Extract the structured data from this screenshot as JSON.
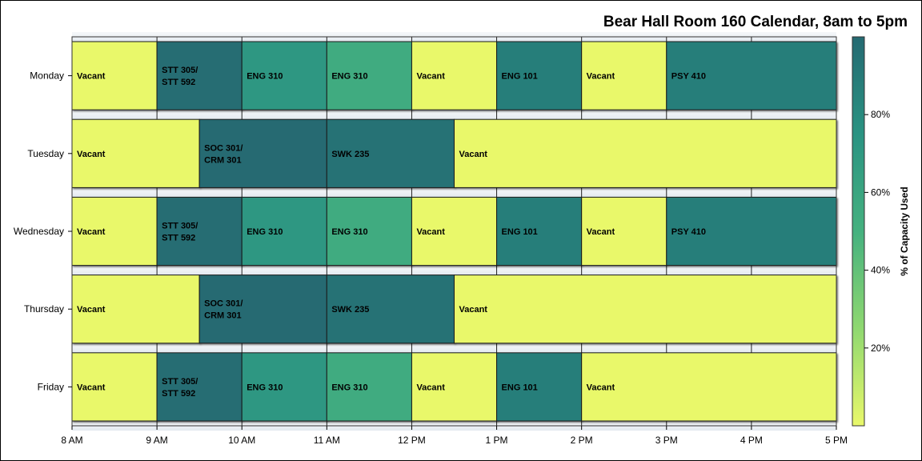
{
  "chart_data": {
    "type": "bar",
    "subtype": "horizontal-timeline",
    "title": "Bear Hall Room 160 Calendar, 8am to 5pm",
    "x_axis": {
      "ticks": [
        "8 AM",
        "9 AM",
        "10 AM",
        "11 AM",
        "12 PM",
        "1 PM",
        "2 PM",
        "3 PM",
        "4 PM",
        "5 PM"
      ],
      "range_hours": [
        8,
        17
      ],
      "grid": true
    },
    "days": [
      "Monday",
      "Tuesday",
      "Wednesday",
      "Thursday",
      "Friday"
    ],
    "colorbar": {
      "label": "% of Capacity Used",
      "ticks": [
        "20%",
        "40%",
        "60%",
        "80%"
      ],
      "tick_values": [
        20,
        40,
        60,
        80
      ],
      "range": [
        0,
        100
      ],
      "colors": [
        "#e9f86b",
        "#8fd870",
        "#45b17f",
        "#2a9382",
        "#256a72"
      ]
    },
    "bars": [
      {
        "day": "Monday",
        "start": 8,
        "end": 9,
        "label": [
          "Vacant"
        ],
        "pct": 0
      },
      {
        "day": "Monday",
        "start": 9,
        "end": 10,
        "label": [
          "STT 305/",
          "STT 592"
        ],
        "pct": 98
      },
      {
        "day": "Monday",
        "start": 10,
        "end": 11,
        "label": [
          "ENG 310"
        ],
        "pct": 72
      },
      {
        "day": "Monday",
        "start": 11,
        "end": 12,
        "label": [
          "ENG 310"
        ],
        "pct": 55
      },
      {
        "day": "Monday",
        "start": 12,
        "end": 13,
        "label": [
          "Vacant"
        ],
        "pct": 0
      },
      {
        "day": "Monday",
        "start": 13,
        "end": 14,
        "label": [
          "ENG 101"
        ],
        "pct": 88
      },
      {
        "day": "Monday",
        "start": 14,
        "end": 15,
        "label": [
          "Vacant"
        ],
        "pct": 0
      },
      {
        "day": "Monday",
        "start": 15,
        "end": 17,
        "label": [
          "PSY 410"
        ],
        "pct": 88
      },
      {
        "day": "Tuesday",
        "start": 8,
        "end": 9.5,
        "label": [
          "Vacant"
        ],
        "pct": 0
      },
      {
        "day": "Tuesday",
        "start": 9.5,
        "end": 11,
        "label": [
          "SOC 301/",
          "CRM 301"
        ],
        "pct": 100
      },
      {
        "day": "Tuesday",
        "start": 11,
        "end": 12.5,
        "label": [
          "SWK 235"
        ],
        "pct": 95
      },
      {
        "day": "Tuesday",
        "start": 12.5,
        "end": 17,
        "label": [
          "Vacant"
        ],
        "pct": 0
      },
      {
        "day": "Wednesday",
        "start": 8,
        "end": 9,
        "label": [
          "Vacant"
        ],
        "pct": 0
      },
      {
        "day": "Wednesday",
        "start": 9,
        "end": 10,
        "label": [
          "STT 305/",
          "STT 592"
        ],
        "pct": 98
      },
      {
        "day": "Wednesday",
        "start": 10,
        "end": 11,
        "label": [
          "ENG 310"
        ],
        "pct": 72
      },
      {
        "day": "Wednesday",
        "start": 11,
        "end": 12,
        "label": [
          "ENG 310"
        ],
        "pct": 55
      },
      {
        "day": "Wednesday",
        "start": 12,
        "end": 13,
        "label": [
          "Vacant"
        ],
        "pct": 0
      },
      {
        "day": "Wednesday",
        "start": 13,
        "end": 14,
        "label": [
          "ENG 101"
        ],
        "pct": 88
      },
      {
        "day": "Wednesday",
        "start": 14,
        "end": 15,
        "label": [
          "Vacant"
        ],
        "pct": 0
      },
      {
        "day": "Wednesday",
        "start": 15,
        "end": 17,
        "label": [
          "PSY 410"
        ],
        "pct": 88
      },
      {
        "day": "Thursday",
        "start": 8,
        "end": 9.5,
        "label": [
          "Vacant"
        ],
        "pct": 0
      },
      {
        "day": "Thursday",
        "start": 9.5,
        "end": 11,
        "label": [
          "SOC 301/",
          "CRM 301"
        ],
        "pct": 100
      },
      {
        "day": "Thursday",
        "start": 11,
        "end": 12.5,
        "label": [
          "SWK 235"
        ],
        "pct": 95
      },
      {
        "day": "Thursday",
        "start": 12.5,
        "end": 17,
        "label": [
          "Vacant"
        ],
        "pct": 0
      },
      {
        "day": "Friday",
        "start": 8,
        "end": 9,
        "label": [
          "Vacant"
        ],
        "pct": 0
      },
      {
        "day": "Friday",
        "start": 9,
        "end": 10,
        "label": [
          "STT 305/",
          "STT 592"
        ],
        "pct": 98
      },
      {
        "day": "Friday",
        "start": 10,
        "end": 11,
        "label": [
          "ENG 310"
        ],
        "pct": 72
      },
      {
        "day": "Friday",
        "start": 11,
        "end": 12,
        "label": [
          "ENG 310"
        ],
        "pct": 55
      },
      {
        "day": "Friday",
        "start": 12,
        "end": 13,
        "label": [
          "Vacant"
        ],
        "pct": 0
      },
      {
        "day": "Friday",
        "start": 13,
        "end": 14,
        "label": [
          "ENG 101"
        ],
        "pct": 88
      },
      {
        "day": "Friday",
        "start": 14,
        "end": 17,
        "label": [
          "Vacant"
        ],
        "pct": 0
      }
    ]
  }
}
